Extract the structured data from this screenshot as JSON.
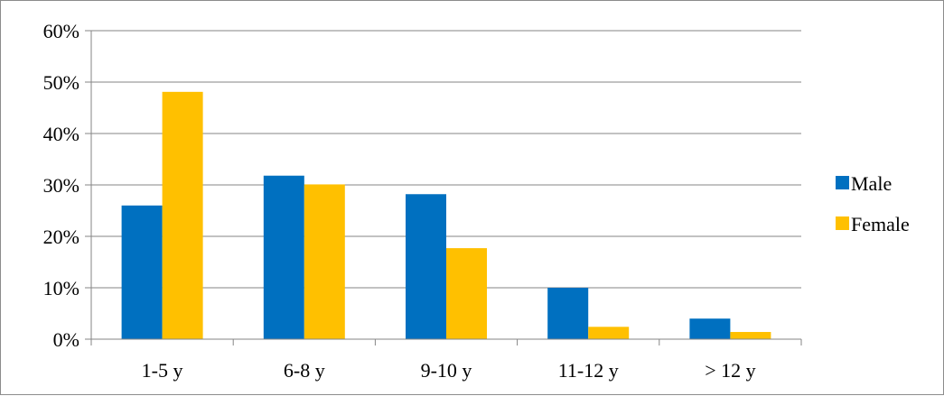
{
  "chart_data": {
    "type": "bar",
    "categories": [
      "1-5 y",
      "6-8 y",
      "9-10 y",
      "11-12 y",
      "> 12 y"
    ],
    "series": [
      {
        "name": "Male",
        "values": [
          26,
          31.8,
          28.2,
          10,
          4
        ],
        "color": "#0070C0"
      },
      {
        "name": "Female",
        "values": [
          48.1,
          30.1,
          17.7,
          2.4,
          1.4
        ],
        "color": "#FFC000"
      }
    ],
    "ylim": [
      0,
      60
    ],
    "yticks": [
      "0%",
      "10%",
      "20%",
      "30%",
      "40%",
      "50%",
      "60%"
    ],
    "y_unit": "percent",
    "grid": true,
    "legend_position": "right"
  }
}
